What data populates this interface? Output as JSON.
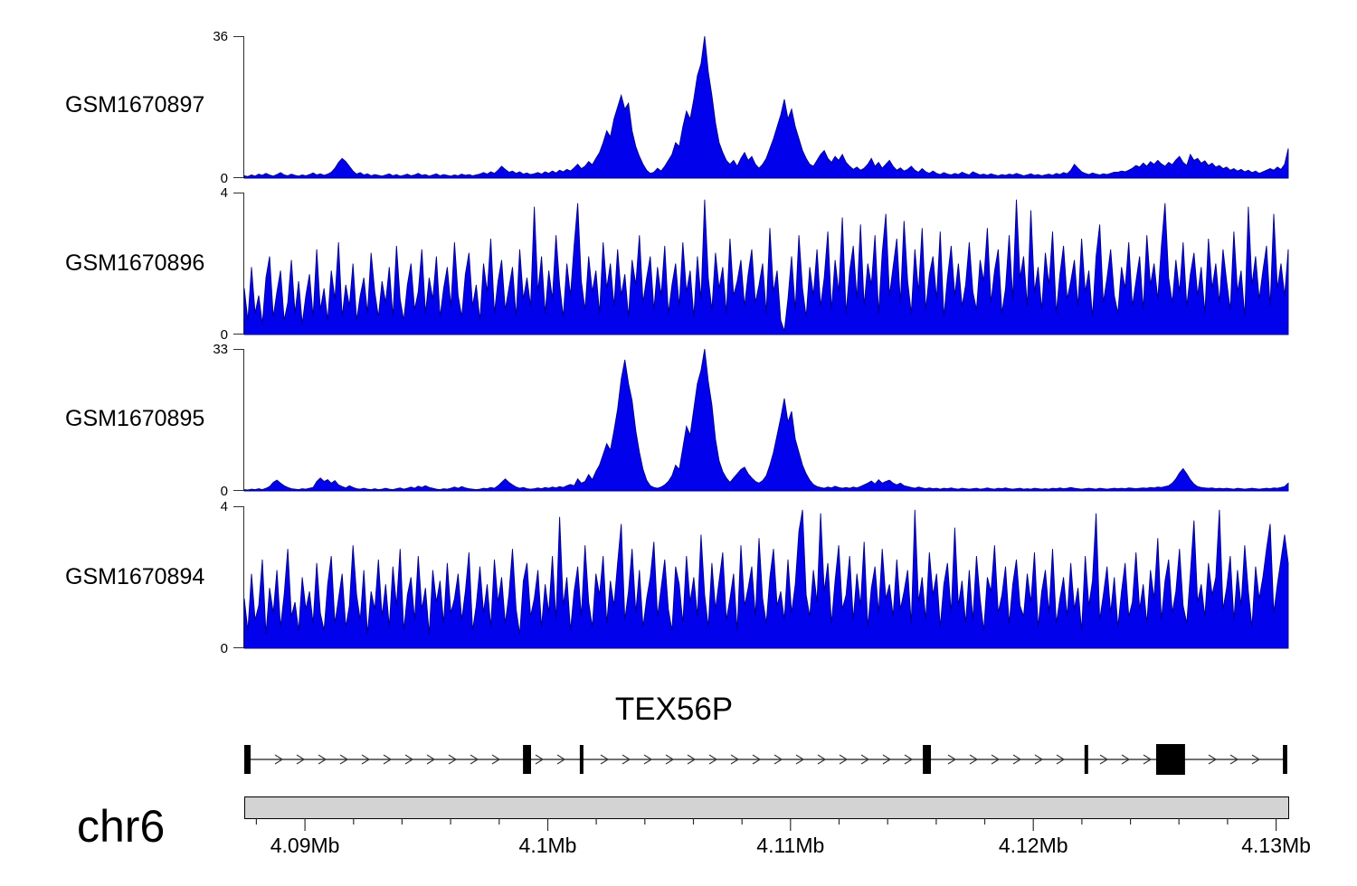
{
  "colors": {
    "signal_fill": "#0101EC",
    "signal_stroke": "#000087",
    "axis_bar_fill": "#D3D3D3",
    "axis_line": "#2f2f2f",
    "gene_color": "#000000"
  },
  "chart_data": {
    "type": "area",
    "title": "",
    "legend": "none",
    "grid": false,
    "x_axis": {
      "chromosome": "chr6",
      "unit": "Mb",
      "start_mb": 4.0875,
      "end_mb": 4.1305,
      "major_ticks_mb": [
        4.09,
        4.1,
        4.11,
        4.12,
        4.13
      ],
      "tick_labels": [
        "4.09Mb",
        "4.1Mb",
        "4.11Mb",
        "4.12Mb",
        "4.13Mb"
      ],
      "minor_tick_step_mb": 0.002,
      "sampling": "uniform, 289 points from start_mb to end_mb"
    },
    "series": [
      {
        "name": "GSM1670897",
        "ylim": [
          0,
          36
        ],
        "ymax_label": "36",
        "ymin_label": "0",
        "values": [
          0.6,
          0.4,
          0.8,
          0.5,
          1.0,
          0.7,
          1.2,
          0.8,
          0.5,
          0.9,
          1.4,
          0.8,
          0.6,
          1.0,
          0.7,
          0.5,
          0.8,
          0.6,
          0.9,
          1.3,
          0.8,
          1.1,
          0.7,
          1.0,
          1.5,
          2.5,
          4.0,
          5.0,
          4.2,
          3.0,
          1.8,
          1.0,
          1.4,
          0.8,
          1.1,
          0.6,
          0.9,
          0.7,
          0.5,
          0.8,
          1.1,
          0.6,
          0.9,
          0.5,
          0.7,
          1.0,
          0.6,
          0.8,
          1.2,
          0.7,
          0.9,
          0.5,
          0.8,
          1.1,
          0.6,
          0.9,
          0.7,
          0.5,
          0.8,
          0.6,
          1.0,
          0.7,
          0.9,
          0.6,
          0.8,
          1.0,
          1.4,
          1.0,
          1.6,
          1.2,
          2.0,
          3.0,
          2.2,
          1.5,
          1.8,
          1.2,
          1.6,
          1.0,
          1.3,
          0.9,
          1.1,
          1.4,
          1.0,
          1.6,
          1.2,
          1.8,
          1.3,
          2.0,
          1.6,
          2.2,
          1.8,
          2.6,
          3.5,
          2.4,
          3.0,
          4.2,
          3.4,
          5.0,
          6.5,
          9.0,
          12.0,
          10.5,
          15.0,
          18.0,
          21.0,
          17.5,
          19.0,
          12.0,
          8.0,
          5.5,
          3.5,
          2.0,
          1.2,
          1.5,
          2.5,
          1.8,
          3.0,
          4.5,
          6.0,
          9.0,
          8.0,
          13.0,
          17.0,
          15.0,
          20.0,
          26.0,
          29.0,
          36.0,
          27.0,
          21.0,
          14.0,
          9.0,
          6.5,
          4.5,
          3.5,
          4.5,
          3.0,
          5.0,
          6.5,
          4.5,
          5.5,
          3.5,
          2.5,
          3.5,
          5.0,
          7.5,
          10.0,
          13.0,
          16.0,
          20.0,
          15.0,
          17.5,
          13.0,
          10.0,
          7.0,
          5.0,
          3.5,
          3.0,
          4.5,
          6.0,
          7.0,
          5.0,
          4.0,
          5.5,
          4.5,
          6.0,
          4.0,
          3.0,
          2.2,
          2.8,
          2.0,
          2.5,
          3.5,
          5.0,
          3.0,
          4.0,
          2.5,
          3.5,
          4.5,
          3.0,
          2.0,
          2.6,
          1.8,
          2.2,
          3.0,
          2.0,
          1.5,
          2.4,
          1.6,
          1.2,
          1.8,
          1.2,
          0.9,
          1.4,
          1.0,
          0.8,
          1.2,
          0.9,
          1.5,
          1.1,
          0.8,
          1.6,
          1.2,
          0.8,
          1.0,
          0.7,
          1.1,
          0.8,
          0.6,
          0.9,
          0.7,
          1.0,
          0.8,
          1.2,
          0.9,
          0.6,
          0.8,
          1.1,
          0.7,
          0.9,
          0.6,
          0.8,
          1.0,
          0.7,
          1.2,
          0.9,
          1.4,
          1.1,
          2.0,
          3.5,
          2.5,
          1.6,
          1.2,
          0.9,
          1.3,
          1.0,
          0.8,
          1.1,
          0.9,
          1.2,
          1.5,
          1.5,
          1.8,
          1.6,
          2.0,
          2.5,
          3.2,
          2.8,
          3.8,
          3.0,
          4.2,
          3.5,
          4.5,
          3.6,
          3.0,
          4.0,
          3.4,
          4.6,
          5.5,
          4.0,
          3.2,
          6.0,
          4.5,
          5.0,
          3.8,
          4.4,
          3.2,
          3.8,
          2.8,
          3.2,
          2.4,
          2.8,
          2.0,
          2.4,
          1.8,
          2.2,
          1.6,
          2.0,
          1.4,
          1.8,
          1.2,
          1.6,
          2.0,
          2.4,
          2.0,
          2.8,
          2.2,
          3.5,
          7.5
        ]
      },
      {
        "name": "GSM1670896",
        "ylim": [
          0,
          4
        ],
        "ymax_label": "4",
        "ymin_label": "0",
        "values": [
          1.3,
          0.4,
          1.9,
          0.6,
          1.1,
          0.3,
          1.6,
          2.2,
          0.5,
          1.2,
          1.8,
          0.4,
          0.9,
          2.1,
          0.6,
          1.5,
          0.3,
          1.1,
          1.7,
          0.5,
          2.4,
          0.7,
          1.3,
          0.4,
          1.8,
          1.0,
          2.6,
          0.5,
          1.4,
          0.8,
          2.0,
          0.4,
          1.1,
          1.6,
          0.6,
          2.3,
          1.2,
          0.5,
          1.5,
          0.9,
          1.9,
          0.5,
          2.5,
          1.0,
          0.4,
          1.4,
          2.0,
          0.7,
          1.2,
          2.4,
          0.6,
          1.6,
          1.0,
          2.2,
          0.5,
          1.3,
          1.9,
          0.8,
          2.6,
          1.1,
          0.5,
          1.7,
          2.3,
          0.8,
          1.4,
          0.4,
          2.0,
          1.2,
          2.7,
          0.6,
          1.5,
          2.1,
          0.7,
          1.3,
          1.9,
          0.5,
          2.4,
          1.0,
          1.6,
          0.8,
          3.6,
          1.2,
          2.2,
          0.6,
          1.8,
          1.0,
          2.8,
          1.4,
          0.5,
          2.0,
          1.1,
          2.5,
          3.7,
          1.5,
          0.7,
          2.2,
          1.2,
          1.8,
          0.6,
          2.6,
          1.3,
          2.0,
          0.8,
          2.4,
          1.1,
          1.7,
          0.5,
          2.1,
          1.4,
          2.8,
          0.9,
          1.6,
          2.2,
          0.7,
          1.9,
          1.1,
          2.5,
          0.6,
          1.4,
          2.0,
          0.8,
          2.6,
          1.2,
          1.8,
          0.5,
          2.2,
          1.0,
          3.8,
          1.6,
          0.7,
          2.3,
          1.3,
          1.9,
          0.6,
          2.7,
          1.1,
          1.5,
          2.1,
          0.8,
          1.7,
          2.4,
          0.9,
          1.4,
          2.0,
          0.6,
          3.0,
          1.2,
          1.8,
          0.4,
          0.1,
          1.0,
          2.2,
          0.7,
          2.8,
          1.3,
          0.5,
          1.9,
          1.1,
          2.4,
          0.8,
          1.6,
          2.9,
          0.7,
          2.1,
          1.2,
          3.3,
          0.6,
          1.8,
          2.5,
          1.0,
          3.1,
          0.8,
          2.0,
          1.4,
          2.8,
          0.6,
          2.3,
          3.4,
          1.1,
          1.9,
          2.7,
          0.9,
          3.2,
          1.5,
          0.6,
          2.4,
          1.2,
          3.0,
          0.7,
          1.7,
          2.2,
          1.0,
          2.9,
          0.5,
          1.6,
          2.5,
          1.1,
          2.0,
          0.8,
          1.4,
          2.6,
          1.2,
          0.7,
          2.1,
          1.5,
          3.0,
          0.9,
          1.8,
          2.4,
          0.6,
          1.3,
          2.8,
          1.0,
          3.8,
          1.6,
          2.2,
          0.8,
          3.5,
          1.2,
          1.9,
          0.7,
          2.3,
          1.4,
          2.9,
          0.6,
          1.7,
          2.5,
          1.0,
          1.5,
          2.1,
          0.8,
          2.7,
          1.2,
          1.8,
          0.5,
          2.2,
          3.1,
          0.9,
          1.6,
          2.4,
          1.1,
          0.6,
          1.9,
          1.3,
          2.6,
          0.8,
          1.5,
          2.2,
          0.7,
          2.8,
          1.4,
          2.0,
          1.0,
          2.5,
          3.7,
          1.6,
          0.9,
          2.1,
          1.2,
          2.6,
          0.8,
          1.7,
          2.3,
          1.1,
          1.9,
          0.6,
          2.7,
          1.3,
          2.0,
          0.9,
          2.4,
          1.5,
          0.7,
          2.9,
          1.2,
          1.8,
          0.5,
          3.6,
          1.4,
          2.2,
          1.0,
          1.8,
          2.5,
          0.8,
          3.4,
          1.3,
          2.0,
          1.1,
          2.4
        ]
      },
      {
        "name": "GSM1670895",
        "ylim": [
          0,
          33
        ],
        "ymax_label": "33",
        "ymin_label": "0",
        "values": [
          0.3,
          0.2,
          0.4,
          0.3,
          0.5,
          0.3,
          0.6,
          1.0,
          2.0,
          2.5,
          1.8,
          1.2,
          0.8,
          0.5,
          0.4,
          0.3,
          0.5,
          0.4,
          0.6,
          0.8,
          2.2,
          3.0,
          2.2,
          2.6,
          1.8,
          2.4,
          1.4,
          1.0,
          0.7,
          1.2,
          0.8,
          0.5,
          0.4,
          0.6,
          0.4,
          0.3,
          0.5,
          0.3,
          0.4,
          0.6,
          0.4,
          0.3,
          0.5,
          0.7,
          0.4,
          0.6,
          0.9,
          0.6,
          1.1,
          0.8,
          1.2,
          0.8,
          0.6,
          0.4,
          0.3,
          0.5,
          0.4,
          0.6,
          0.9,
          0.6,
          1.0,
          0.7,
          0.5,
          0.4,
          0.3,
          0.4,
          0.6,
          0.5,
          0.8,
          0.6,
          1.2,
          2.0,
          2.8,
          2.0,
          1.4,
          0.9,
          0.6,
          0.8,
          0.5,
          0.4,
          0.5,
          0.7,
          0.5,
          0.8,
          0.6,
          0.9,
          0.7,
          1.0,
          0.8,
          1.2,
          1.5,
          1.2,
          2.8,
          1.8,
          2.2,
          3.8,
          2.6,
          4.5,
          6.0,
          8.5,
          11.0,
          9.5,
          14.0,
          19.0,
          26.0,
          30.5,
          25.0,
          21.0,
          14.0,
          9.0,
          5.0,
          2.5,
          1.2,
          0.8,
          0.6,
          0.9,
          1.4,
          2.2,
          3.5,
          6.0,
          5.0,
          10.0,
          15.0,
          13.0,
          19.0,
          25.0,
          28.0,
          33.0,
          25.5,
          20.0,
          12.0,
          7.0,
          4.5,
          3.0,
          2.0,
          3.0,
          4.0,
          5.0,
          5.5,
          4.0,
          3.0,
          2.2,
          1.8,
          2.4,
          3.5,
          6.0,
          9.0,
          13.0,
          17.0,
          21.5,
          16.0,
          18.5,
          12.0,
          9.0,
          6.0,
          4.0,
          2.5,
          1.5,
          1.0,
          0.8,
          0.6,
          0.9,
          0.7,
          1.1,
          0.8,
          0.6,
          0.8,
          0.6,
          0.9,
          0.7,
          1.0,
          1.4,
          1.8,
          2.3,
          1.6,
          2.6,
          1.8,
          2.2,
          2.5,
          1.8,
          1.4,
          1.8,
          1.2,
          1.0,
          0.8,
          0.6,
          0.9,
          0.7,
          0.5,
          0.7,
          0.5,
          0.6,
          0.4,
          0.6,
          0.5,
          0.7,
          0.5,
          0.4,
          0.6,
          0.5,
          0.4,
          0.5,
          0.6,
          0.4,
          0.5,
          0.7,
          0.5,
          0.4,
          0.6,
          0.5,
          0.7,
          0.5,
          0.4,
          0.5,
          0.6,
          0.4,
          0.5,
          0.4,
          0.6,
          0.5,
          0.4,
          0.5,
          0.4,
          0.6,
          0.5,
          0.7,
          0.5,
          0.6,
          0.8,
          0.6,
          0.5,
          0.4,
          0.5,
          0.6,
          0.5,
          0.4,
          0.6,
          0.5,
          0.4,
          0.5,
          0.6,
          0.5,
          0.6,
          0.5,
          0.7,
          0.6,
          0.5,
          0.6,
          0.7,
          0.6,
          0.8,
          0.7,
          0.9,
          0.8,
          1.0,
          1.2,
          1.8,
          2.8,
          4.2,
          5.2,
          4.0,
          2.6,
          1.6,
          1.0,
          0.8,
          0.7,
          0.6,
          0.7,
          0.5,
          0.6,
          0.5,
          0.6,
          0.5,
          0.4,
          0.6,
          0.5,
          0.4,
          0.5,
          0.6,
          0.5,
          0.4,
          0.5,
          0.6,
          0.5,
          0.7,
          0.6,
          0.8,
          1.0,
          1.8
        ]
      },
      {
        "name": "GSM1670894",
        "ylim": [
          0,
          4
        ],
        "ymax_label": "4",
        "ymin_label": "0",
        "values": [
          1.4,
          0.5,
          2.1,
          0.8,
          1.2,
          2.5,
          0.4,
          1.7,
          1.0,
          2.2,
          0.6,
          1.5,
          2.8,
          0.9,
          1.3,
          0.5,
          2.0,
          1.1,
          1.6,
          0.7,
          2.4,
          1.0,
          0.5,
          1.8,
          2.6,
          0.7,
          1.4,
          2.1,
          0.6,
          1.2,
          2.9,
          1.5,
          0.8,
          2.2,
          0.4,
          1.6,
          1.1,
          2.5,
          0.9,
          1.8,
          0.6,
          2.3,
          1.2,
          2.8,
          0.5,
          1.5,
          2.0,
          0.8,
          2.6,
          1.1,
          1.7,
          0.4,
          2.2,
          1.3,
          1.9,
          0.7,
          2.4,
          1.0,
          1.4,
          2.1,
          0.8,
          1.6,
          2.7,
          0.5,
          1.2,
          2.3,
          1.0,
          1.8,
          0.6,
          2.5,
          1.3,
          2.0,
          0.7,
          1.5,
          2.8,
          1.1,
          0.4,
          1.9,
          2.4,
          0.9,
          1.4,
          2.2,
          0.6,
          1.8,
          1.0,
          2.6,
          0.8,
          3.7,
          1.2,
          2.0,
          0.5,
          1.6,
          2.3,
          0.9,
          2.9,
          1.3,
          0.6,
          2.1,
          1.5,
          2.6,
          0.7,
          1.9,
          1.2,
          2.4,
          3.5,
          0.8,
          1.6,
          2.8,
          1.0,
          2.2,
          0.6,
          1.4,
          2.0,
          3.0,
          0.9,
          1.7,
          2.5,
          1.1,
          0.5,
          2.3,
          1.8,
          0.7,
          2.6,
          1.3,
          2.0,
          0.9,
          3.2,
          1.5,
          0.6,
          2.4,
          1.1,
          1.9,
          2.7,
          0.8,
          1.4,
          2.1,
          0.5,
          2.9,
          1.2,
          1.7,
          2.3,
          0.9,
          3.1,
          1.4,
          0.7,
          2.0,
          2.8,
          1.2,
          1.6,
          0.8,
          2.5,
          1.0,
          1.8,
          3.3,
          3.9,
          1.5,
          0.9,
          2.2,
          1.3,
          3.8,
          1.6,
          2.4,
          0.7,
          1.9,
          2.9,
          1.1,
          1.5,
          2.6,
          0.8,
          2.1,
          1.2,
          3.0,
          0.6,
          1.7,
          2.3,
          1.0,
          2.8,
          1.4,
          1.8,
          0.9,
          2.5,
          1.1,
          1.6,
          2.2,
          0.7,
          3.9,
          1.3,
          2.0,
          0.8,
          2.7,
          1.5,
          2.1,
          0.6,
          1.8,
          2.4,
          1.0,
          3.4,
          1.2,
          1.9,
          0.7,
          2.2,
          0.8,
          2.6,
          1.4,
          0.5,
          2.0,
          1.6,
          2.9,
          1.0,
          1.5,
          2.3,
          0.7,
          1.8,
          2.5,
          1.2,
          0.9,
          2.1,
          1.3,
          2.7,
          0.6,
          1.6,
          2.2,
          1.0,
          2.8,
          0.7,
          1.4,
          2.0,
          0.9,
          2.4,
          1.1,
          1.7,
          0.5,
          2.6,
          1.2,
          1.9,
          3.8,
          0.8,
          1.5,
          2.3,
          1.0,
          2.0,
          0.6,
          1.6,
          2.4,
          0.9,
          1.3,
          2.7,
          1.1,
          1.8,
          0.7,
          2.2,
          1.4,
          3.1,
          0.8,
          1.9,
          2.5,
          1.0,
          1.6,
          2.8,
          1.2,
          0.7,
          2.1,
          3.6,
          1.3,
          1.8,
          0.9,
          2.4,
          1.5,
          2.0,
          3.9,
          1.1,
          1.7,
          2.6,
          0.8,
          2.2,
          1.2,
          2.9,
          1.6,
          0.6,
          2.3,
          1.4,
          2.0,
          2.8,
          3.5,
          1.0,
          1.8,
          2.5,
          3.2,
          2.4
        ]
      }
    ],
    "gene_annotation": {
      "name": "TEX56P",
      "chromosome": "chr6",
      "strand": "+",
      "direction": "right",
      "big_exon_index": 5,
      "exons_mb": [
        [
          4.0875,
          4.08776
        ],
        [
          4.09898,
          4.09931
        ],
        [
          4.10132,
          4.10147
        ],
        [
          4.11545,
          4.11578
        ],
        [
          4.12211,
          4.12226
        ],
        [
          4.12506,
          4.12625
        ],
        [
          4.13028,
          4.13046
        ]
      ]
    }
  }
}
